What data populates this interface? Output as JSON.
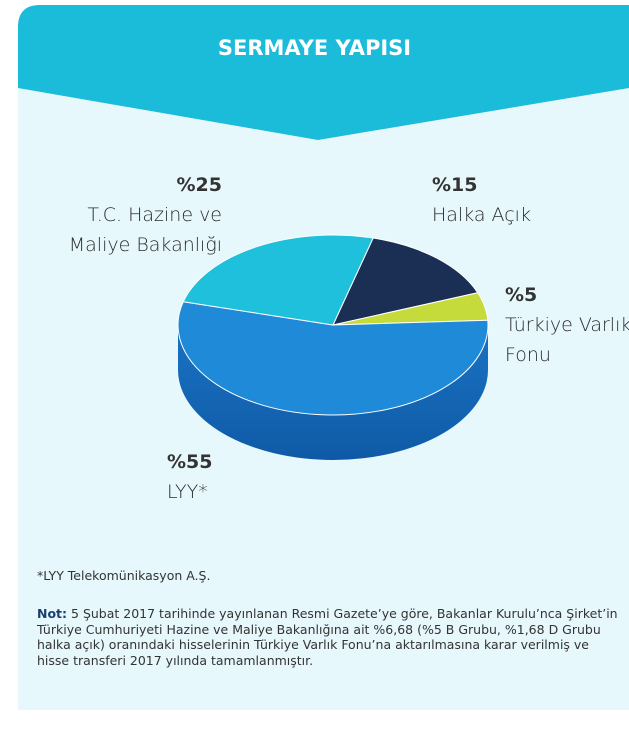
{
  "chart_data": {
    "type": "pie",
    "title": "SERMAYE YAPISI",
    "categories": [
      "Halka Açık",
      "Türkiye Varlık Fonu",
      "LYY*",
      "T.C. Hazine ve Maliye Bakanlığı"
    ],
    "values": [
      15,
      5,
      55,
      25
    ],
    "value_labels": [
      "%15",
      "%5",
      "%55",
      "%25"
    ],
    "colors": [
      "#1b2f55",
      "#c5db3b",
      "#1f8ad8",
      "#1ec0dc"
    ],
    "footnote": "*LYY Telekomünikasyon A.Ş.",
    "note_label": "Not:",
    "note": "5 Şubat 2017 tarihinde yayınlanan Resmi Gazete’ye göre, Bakanlar Kurulu’nca Şirket’in Türkiye Cumhuriyeti Hazine ve Maliye Bakanlığına ait %6,68 (%5 B Grubu, %1,68 D Grubu halka açık) oranındaki hisselerinin Türkiye Varlık Fonu’na aktarılmasına karar verilmiş ve hisse transferi 2017 yılında tamamlanmıştır."
  }
}
